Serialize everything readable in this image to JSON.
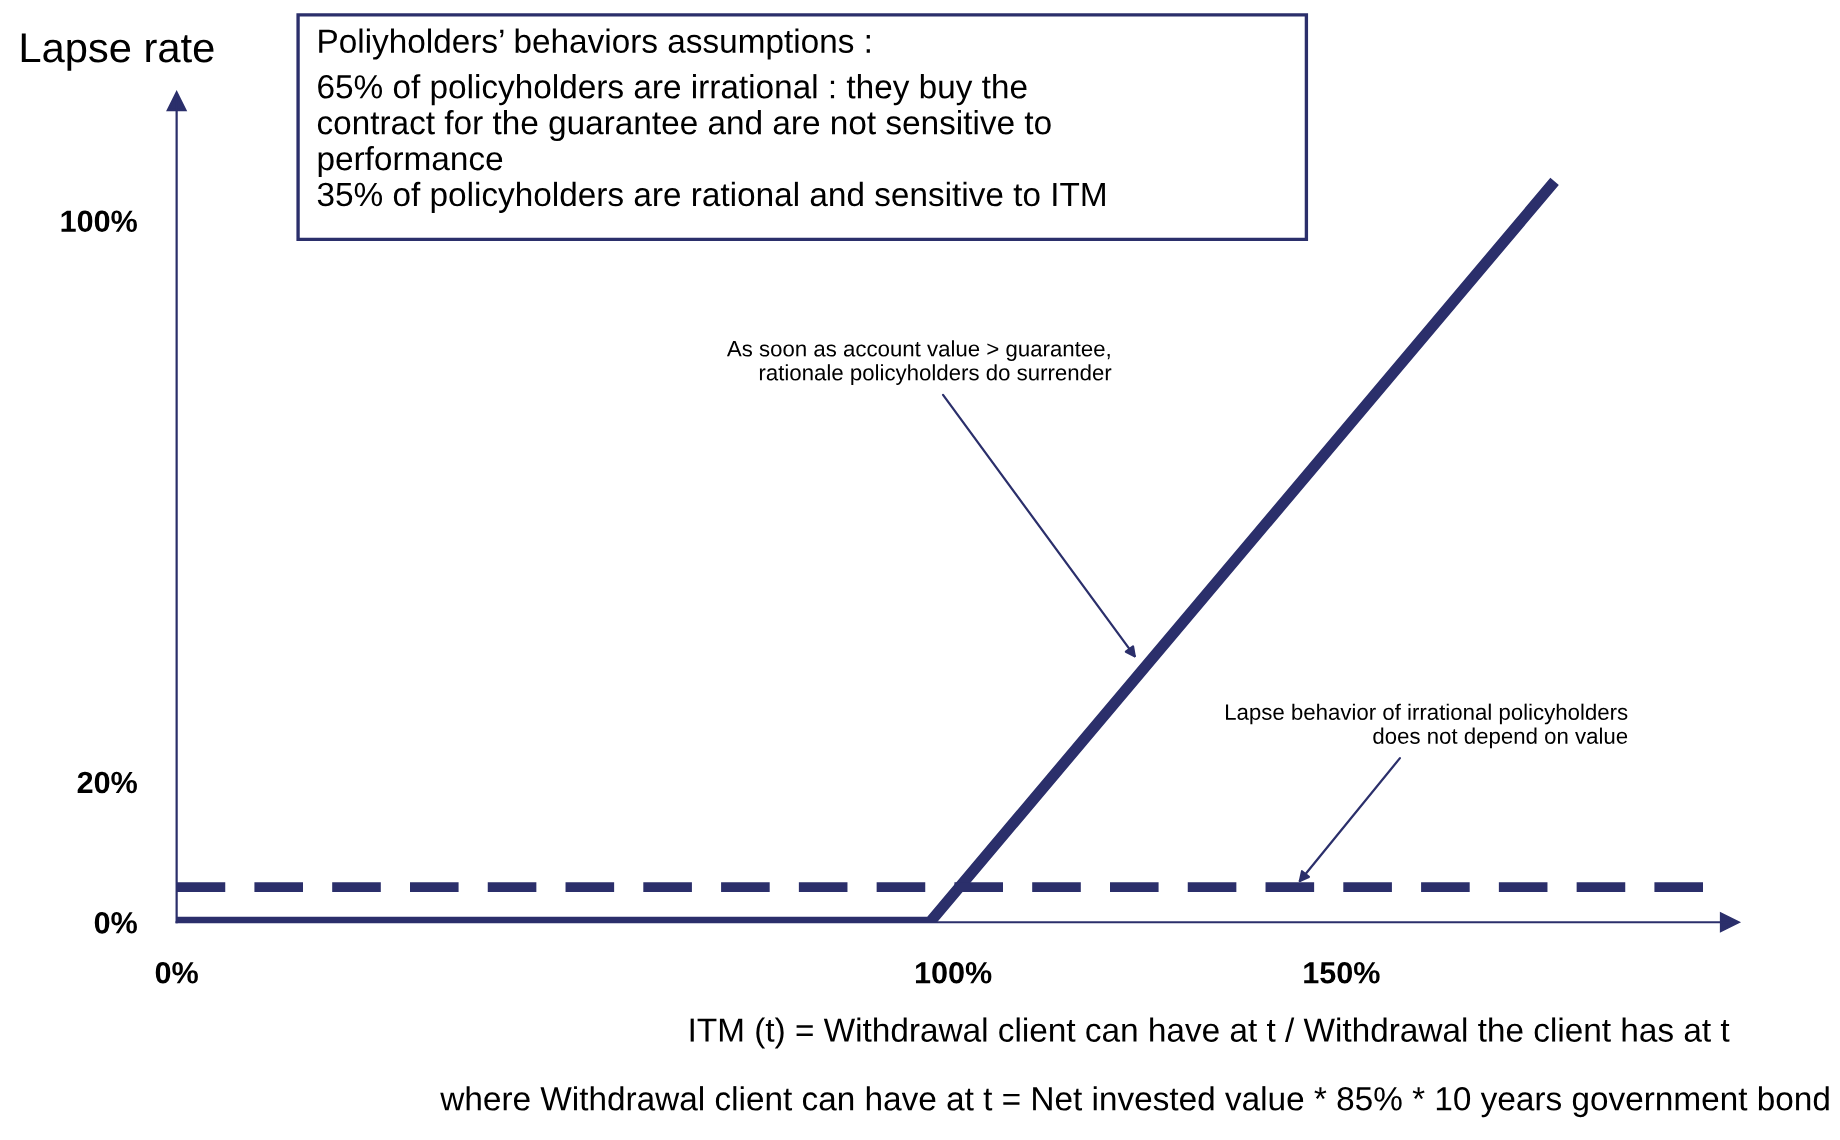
{
  "chart_data": {
    "type": "line",
    "title": "Poliyholders’ behaviors assumptions :",
    "subtitle": "65% of policyholders are irrational : they buy the\ncontract for the guarantee and are not sensitive to\nperformance\n35% of policyholders are rational and sensitive to ITM",
    "ylabel": "Lapse rate",
    "xlabel": "ITM (t) = Withdrawal client can have at t / Withdrawal the client has at t",
    "series": [
      {
        "color": "#2b2f6b",
        "line_style": "solid",
        "x": [
          0,
          97,
          177
        ],
        "values": [
          0,
          0,
          105
        ]
      },
      {
        "color": "#2b2f6b",
        "line_style": "dashed",
        "x": [
          0,
          197
        ],
        "values": [
          5,
          5
        ]
      }
    ],
    "xlim": [
      0,
      200
    ],
    "xticks": [
      {
        "value": 0,
        "label": "0%"
      },
      {
        "value": 100,
        "label": "100%"
      },
      {
        "value": 150,
        "label": "150%"
      }
    ],
    "ylim": [
      0,
      117
    ],
    "yticks": [
      {
        "value": 0,
        "label": "0%"
      },
      {
        "value": 20,
        "label": "20%"
      },
      {
        "value": 100,
        "label": "100%"
      }
    ],
    "annotations": [
      {
        "text": "As soon as account value > guarantee,\nrationale policyholders do surrender",
        "x": 124,
        "y": 37
      },
      {
        "text": "Lapse behavior of irrational policyholders\ndoes not depend on value",
        "x": 144,
        "y": 5
      },
      "where Withdrawal client can have at t = Net invested value * 85% * 10 years government bond"
    ],
    "grid": false,
    "legend": false
  }
}
